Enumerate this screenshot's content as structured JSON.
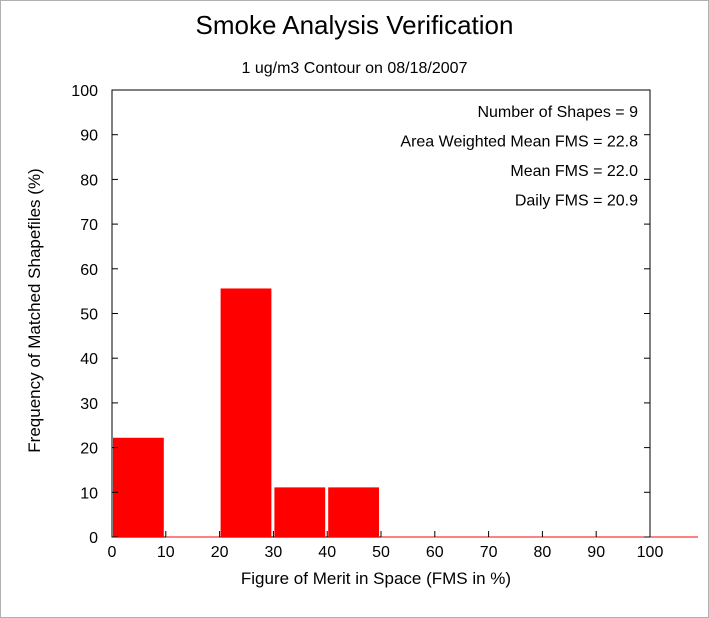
{
  "chart_data": {
    "type": "bar",
    "title": "Smoke Analysis Verification",
    "subtitle": "1 ug/m3 Contour on 08/18/2007",
    "xlabel": "Figure of Merit in Space (FMS in %)",
    "ylabel": "Frequency of Matched Shapefiles (%)",
    "xlim": [
      0,
      100
    ],
    "ylim": [
      0,
      100
    ],
    "xticks": [
      0,
      10,
      20,
      30,
      40,
      50,
      60,
      70,
      80,
      90,
      100
    ],
    "yticks": [
      0,
      10,
      20,
      30,
      40,
      50,
      60,
      70,
      80,
      90,
      100
    ],
    "bin_width": 10,
    "bins": [
      {
        "start": 0,
        "end": 10,
        "value": 22.2
      },
      {
        "start": 10,
        "end": 20,
        "value": 0
      },
      {
        "start": 20,
        "end": 30,
        "value": 55.6
      },
      {
        "start": 30,
        "end": 40,
        "value": 11.1
      },
      {
        "start": 40,
        "end": 50,
        "value": 11.1
      },
      {
        "start": 50,
        "end": 60,
        "value": 0
      },
      {
        "start": 60,
        "end": 70,
        "value": 0
      },
      {
        "start": 70,
        "end": 80,
        "value": 0
      },
      {
        "start": 80,
        "end": 90,
        "value": 0
      },
      {
        "start": 90,
        "end": 100,
        "value": 0
      }
    ],
    "bar_color": "#ff0000",
    "grid": false,
    "annotations": [
      "Number of Shapes = 9",
      "Area Weighted Mean FMS = 22.8",
      "Mean FMS = 22.0",
      "Daily FMS = 20.9"
    ]
  }
}
